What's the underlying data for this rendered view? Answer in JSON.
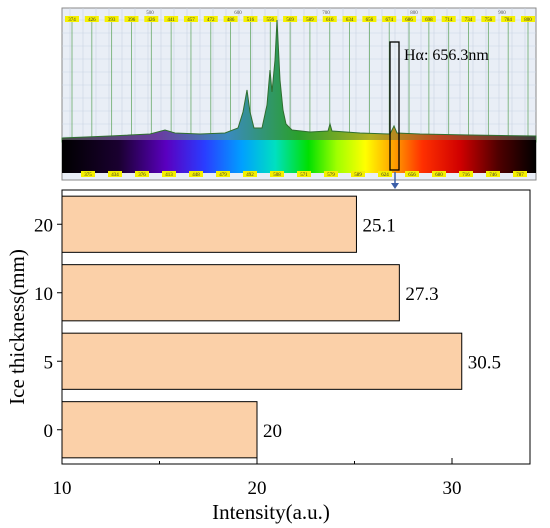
{
  "spectrum": {
    "annotation": "Hα: 656.3nm",
    "top_scale_labels": [
      "500",
      "600",
      "700",
      "800",
      "900"
    ],
    "top_line_labels": [
      "374",
      "426",
      "393",
      "396",
      "426",
      "441",
      "457",
      "472",
      "486",
      "516",
      "556",
      "569",
      "589",
      "616",
      "634",
      "656",
      "674",
      "686",
      "698",
      "714",
      "734",
      "756",
      "784",
      "800"
    ],
    "bottom_line_labels": [
      "375",
      "434",
      "376",
      "413",
      "448",
      "479",
      "492",
      "508",
      "571",
      "579",
      "589",
      "624",
      "656",
      "680",
      "716",
      "746",
      "787"
    ]
  },
  "chart_data": {
    "type": "bar",
    "orientation": "horizontal",
    "title": "",
    "xlabel": "Intensity(a.u.)",
    "ylabel": "Ice thickness(mm)",
    "categories": [
      "0",
      "5",
      "10",
      "20"
    ],
    "values": [
      20,
      30.5,
      27.3,
      25.1
    ],
    "value_labels": [
      "20",
      "30.5",
      "27.3",
      "25.1"
    ],
    "xlim": [
      10,
      34
    ],
    "xticks": [
      10,
      20,
      30
    ],
    "xtick_labels": [
      "10",
      "20",
      "30"
    ],
    "grid": false,
    "legend": "none",
    "bar_color": "#fbd0a8",
    "bar_edge_color": "#000000"
  }
}
